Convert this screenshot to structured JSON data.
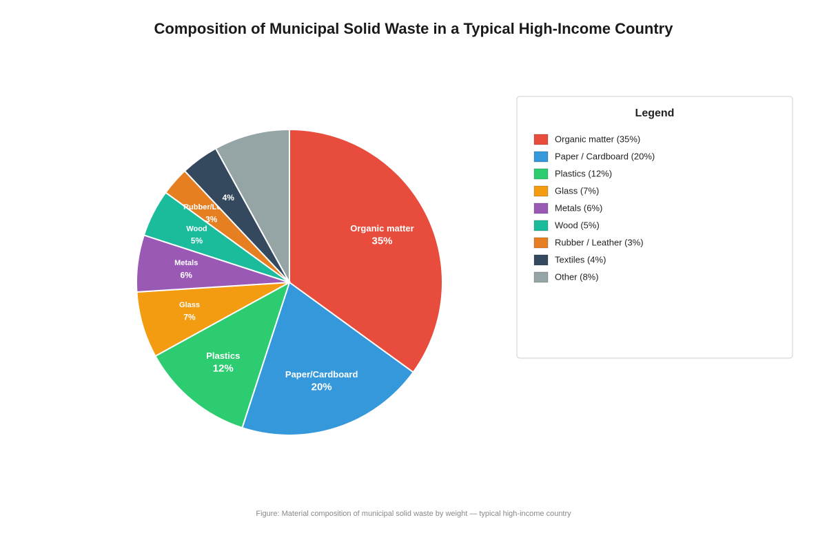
{
  "chart_data": {
    "type": "pie",
    "title": "Composition of Municipal Solid Waste in a Typical High-Income Country",
    "categories": [
      "Organic matter",
      "Paper/Cardboard",
      "Plastics",
      "Glass",
      "Metals",
      "Wood",
      "Rubber/Leather",
      null,
      null
    ],
    "values": [
      35,
      20,
      12,
      7,
      6,
      5,
      3,
      4,
      8
    ],
    "value_labels": [
      "35%",
      "20%",
      "12%",
      "7%",
      "6%",
      "5%",
      "3%",
      "4%",
      null
    ],
    "colors": [
      "#e74c3c",
      "#3498db",
      "#2ecc71",
      "#f39c12",
      "#9b59b6",
      "#1abc9c",
      "#e67e22",
      "#34495e",
      "#95a5a6"
    ],
    "legend_title": "Legend",
    "legend_labels": [
      "Organic matter (35%)",
      "Paper / Cardboard (20%)",
      "Plastics (12%)",
      "Glass (7%)",
      "Metals (6%)",
      "Wood (5%)",
      "Rubber / Leather (3%)",
      "Textiles (4%)",
      "Other (8%)"
    ],
    "caption": "Figure: Material composition of municipal solid waste by weight — typical high-income country"
  }
}
